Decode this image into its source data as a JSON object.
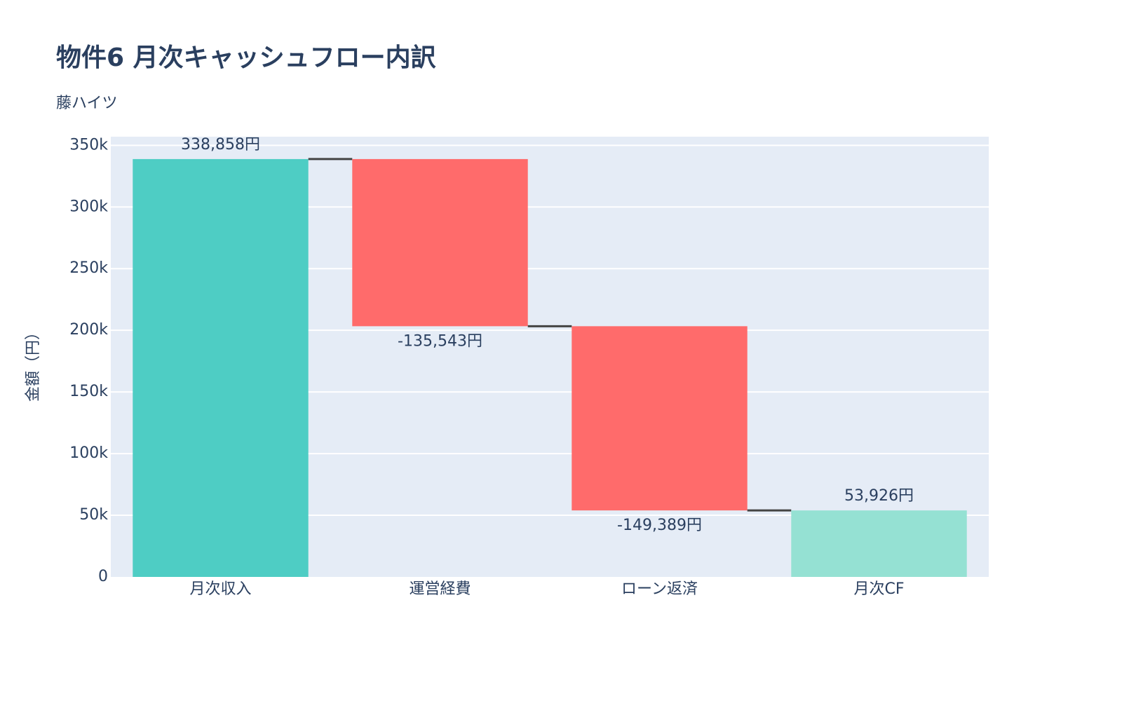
{
  "chart_data": {
    "type": "waterfall",
    "title": "物件6 月次キャッシュフロー内訳",
    "subtitle": "藤ハイツ",
    "y_label": "金額（円）",
    "categories": [
      "月次収入",
      "運営経費",
      "ローン返済",
      "月次CF"
    ],
    "measure": [
      "absolute",
      "relative",
      "relative",
      "total"
    ],
    "values": [
      338858,
      -135543,
      -149389,
      53926
    ],
    "value_labels": [
      "338,858円",
      "-135,543円",
      "-149,389円",
      "53,926円"
    ],
    "increasing_color": "#4ecdc4",
    "decreasing_color": "#ff6b6b",
    "totals_color": "#95e1d3",
    "connector_color": "#444444",
    "ylim": [
      0,
      357000
    ],
    "yticks": [
      0,
      {
        "value": 50000,
        "label": "50k"
      },
      {
        "value": 100000,
        "label": "100k"
      },
      {
        "value": 150000,
        "label": "150k"
      },
      {
        "value": 200000,
        "label": "200k"
      },
      {
        "value": 250000,
        "label": "250k"
      },
      {
        "value": 300000,
        "label": "300k"
      },
      {
        "value": 350000,
        "label": "350k"
      }
    ],
    "grid": true
  }
}
